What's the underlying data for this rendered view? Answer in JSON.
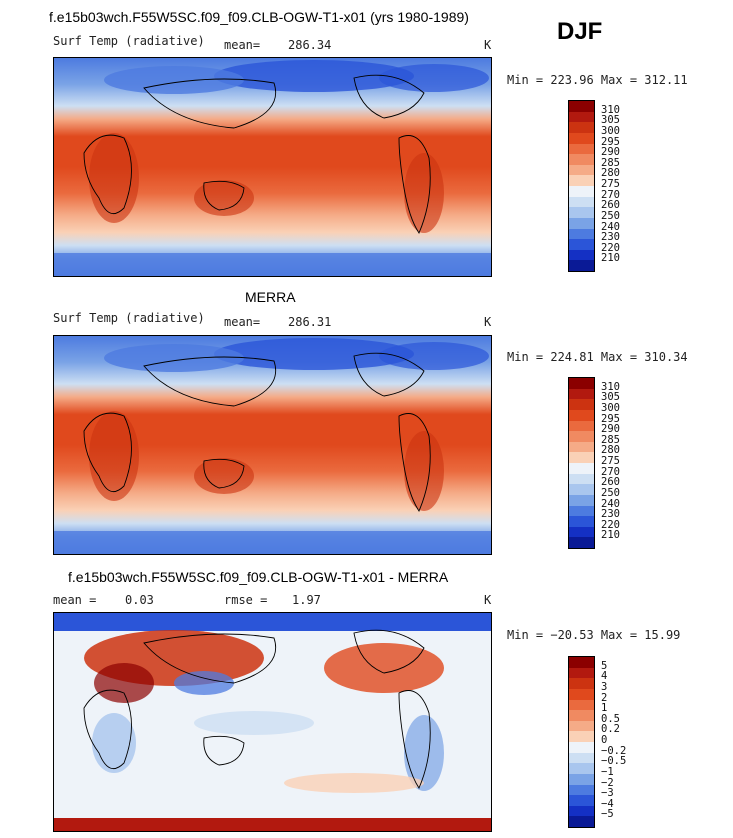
{
  "season": "DJF",
  "panels": [
    {
      "title": "f.e15b03wch.F55W5SC.f09_f09.CLB-OGW-T1-x01 (yrs 1980-1989)",
      "variable": "Surf Temp (radiative)",
      "stat1_label": "mean=",
      "stat1_value": "286.34",
      "stat2_label": "",
      "stat2_value": "",
      "units": "K",
      "minmax": "Min = 223.96 Max = 312.11",
      "colorbar_levels": [
        "310",
        "305",
        "300",
        "295",
        "290",
        "285",
        "280",
        "275",
        "270",
        "260",
        "250",
        "240",
        "230",
        "220",
        "210"
      ],
      "colorbar_colors": [
        "#8b0000",
        "#b2190f",
        "#cc3311",
        "#e0491d",
        "#ea6a3e",
        "#f08a61",
        "#f5ab87",
        "#fad1b6",
        "#eef3f9",
        "#cddff3",
        "#a9c6ee",
        "#7aa3e6",
        "#4d7be0",
        "#2b55d8",
        "#1430c4",
        "#0a1a96"
      ]
    },
    {
      "title": "MERRA",
      "variable": "Surf Temp (radiative)",
      "stat1_label": "mean=",
      "stat1_value": "286.31",
      "stat2_label": "",
      "stat2_value": "",
      "units": "K",
      "minmax": "Min = 224.81 Max = 310.34",
      "colorbar_levels": [
        "310",
        "305",
        "300",
        "295",
        "290",
        "285",
        "280",
        "275",
        "270",
        "260",
        "250",
        "240",
        "230",
        "220",
        "210"
      ],
      "colorbar_colors": [
        "#8b0000",
        "#b2190f",
        "#cc3311",
        "#e0491d",
        "#ea6a3e",
        "#f08a61",
        "#f5ab87",
        "#fad1b6",
        "#eef3f9",
        "#cddff3",
        "#a9c6ee",
        "#7aa3e6",
        "#4d7be0",
        "#2b55d8",
        "#1430c4",
        "#0a1a96"
      ]
    },
    {
      "title": "f.e15b03wch.F55W5SC.f09_f09.CLB-OGW-T1-x01 - MERRA",
      "variable": "",
      "stat1_label": "mean =",
      "stat1_value": "0.03",
      "stat2_label": "rmse =",
      "stat2_value": "1.97",
      "units": "K",
      "minmax": "Min = −20.53 Max = 15.99",
      "colorbar_levels": [
        "5",
        "4",
        "3",
        "2",
        "1",
        "0.5",
        "0.2",
        "0",
        "−0.2",
        "−0.5",
        "−1",
        "−2",
        "−3",
        "−4",
        "−5"
      ],
      "colorbar_colors": [
        "#8b0000",
        "#b2190f",
        "#cc3311",
        "#e0491d",
        "#ea6a3e",
        "#f08a61",
        "#f5ab87",
        "#fad1b6",
        "#eef3f9",
        "#cddff3",
        "#a9c6ee",
        "#7aa3e6",
        "#4d7be0",
        "#2b55d8",
        "#1430c4",
        "#0a1a96"
      ]
    }
  ]
}
